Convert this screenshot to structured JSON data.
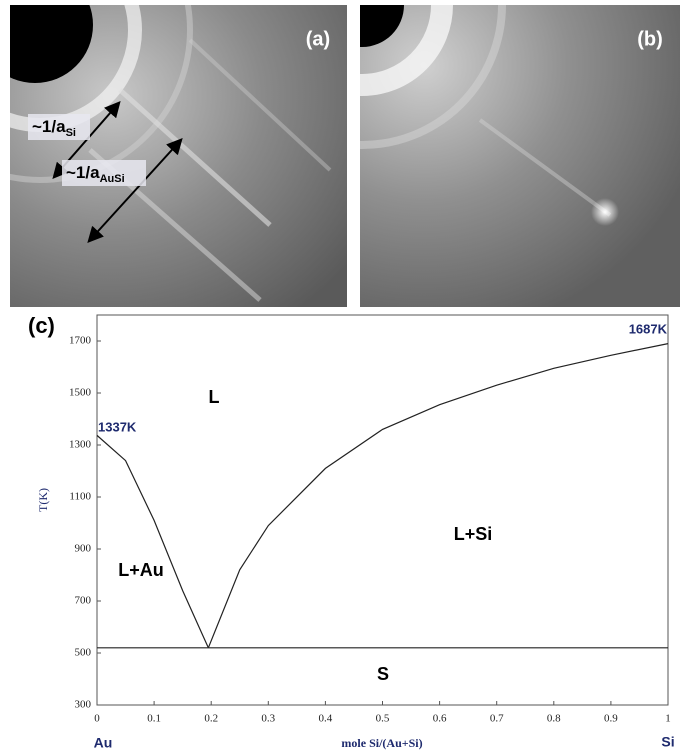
{
  "panels": [
    {
      "label": "(a)",
      "arrows": [
        {
          "text": "~1/a",
          "sub": "Si"
        },
        {
          "text": "~1/a",
          "sub": "AuSi"
        }
      ]
    },
    {
      "label": "(b)"
    }
  ],
  "chart_data": {
    "type": "line",
    "panel_label": "(c)",
    "ylabel": "T(K)",
    "xlabel": "mole Si/(Au+Si)",
    "x_end_labels": [
      "Au",
      "Si"
    ],
    "annotations": [
      "1337K",
      "1687K",
      "L",
      "L+Au",
      "L+Si",
      "S"
    ],
    "xlim": [
      0,
      1
    ],
    "xticks": [
      0,
      0.1,
      0.2,
      0.3,
      0.4,
      0.5,
      0.6,
      0.7,
      0.8,
      0.9,
      1
    ],
    "ylim": [
      300,
      1800
    ],
    "yticks": [
      300,
      500,
      700,
      900,
      1100,
      1300,
      1500,
      1700
    ],
    "series": [
      {
        "color": "#222222",
        "x": [
          0,
          0.05,
          0.1,
          0.15,
          0.195
        ],
        "values": [
          1337,
          1240,
          1010,
          740,
          520
        ]
      },
      {
        "color": "#222222",
        "x": [
          0.195,
          0.25,
          0.3,
          0.4,
          0.5,
          0.6,
          0.7,
          0.8,
          0.9,
          1
        ],
        "values": [
          520,
          820,
          990,
          1210,
          1360,
          1455,
          1530,
          1595,
          1645,
          1690
        ]
      },
      {
        "color": "#222222",
        "x": [
          0,
          1
        ],
        "values": [
          520,
          520
        ]
      }
    ]
  }
}
